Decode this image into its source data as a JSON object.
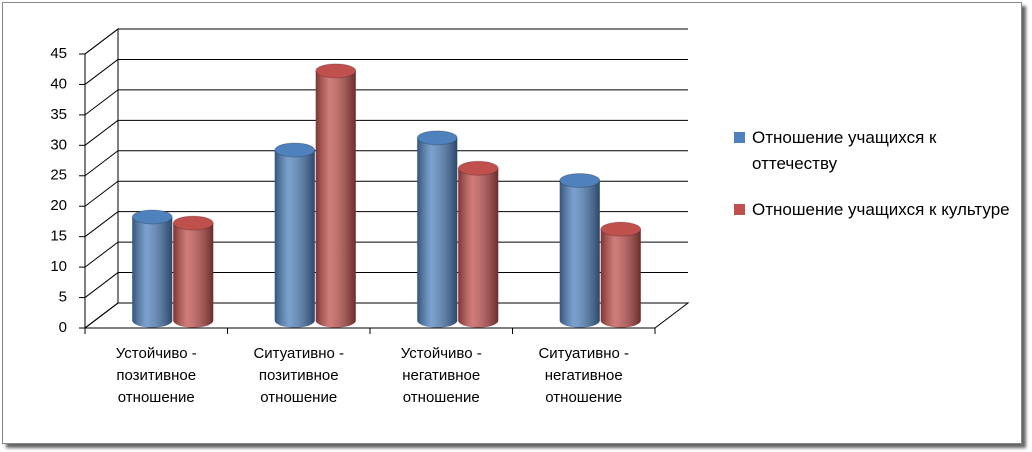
{
  "chart_data": {
    "type": "bar3d",
    "categories": [
      "Устойчиво -\nпозитивное\nотношение",
      "Ситуативно -\nпозитивное\nотношение",
      "Устойчиво -\nнегативное\nотношение",
      "Ситуативно -\nнегативное\nотношение"
    ],
    "series": [
      {
        "name": "Отношение учащихся к оттечеству",
        "color": "#4f81bd",
        "values": [
          17,
          28,
          30,
          23
        ]
      },
      {
        "name": "Отношение учащихся к культуре",
        "color": "#c0504d",
        "values": [
          16,
          41,
          25,
          15
        ]
      }
    ],
    "ylim": [
      0,
      45
    ],
    "yticks": [
      0,
      5,
      10,
      15,
      20,
      25,
      30,
      35,
      40,
      45
    ],
    "grid": true,
    "legend": "right"
  }
}
